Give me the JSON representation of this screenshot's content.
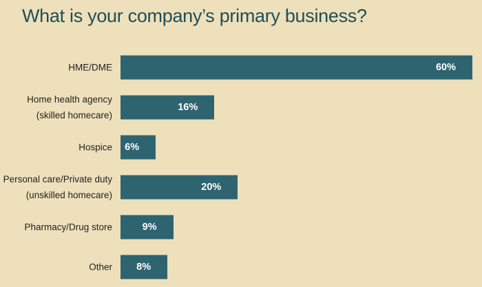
{
  "chart_data": {
    "type": "bar",
    "orientation": "horizontal",
    "title": "What is your company’s primary business?",
    "categories": [
      "HME/DME",
      "Home health agency\n(skilled homecare)",
      "Hospice",
      "Personal care/Private duty\n(unskilled homecare)",
      "Pharmacy/Drug store",
      "Other"
    ],
    "values": [
      60,
      16,
      6,
      20,
      9,
      8
    ],
    "value_labels": [
      "60%",
      "16%",
      "6%",
      "20%",
      "9%",
      "8%"
    ],
    "color": "#2e6470"
  }
}
